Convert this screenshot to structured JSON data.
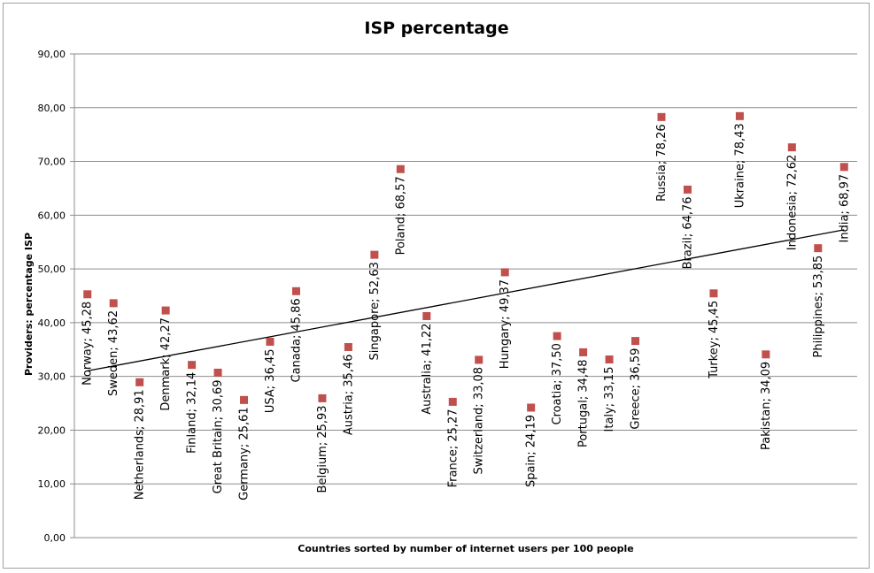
{
  "chart_data": {
    "type": "scatter",
    "title": "ISP percentage",
    "xlabel": "Countries sorted by number of internet users per 100 people",
    "ylabel": "Providers: percentage ISP",
    "ylim": [
      0,
      90
    ],
    "yticks": [
      "0,00",
      "10,00",
      "20,00",
      "30,00",
      "40,00",
      "50,00",
      "60,00",
      "70,00",
      "80,00",
      "90,00"
    ],
    "grid": "horizontal",
    "legend": "none",
    "marker_color": "#c0504d",
    "trendline": {
      "type": "linear",
      "color": "#000000"
    },
    "points": [
      {
        "label": "Norway; 45,28",
        "y": 45.28
      },
      {
        "label": "Sweden; 43,62",
        "y": 43.62
      },
      {
        "label": "Netherlands; 28,91",
        "y": 28.91
      },
      {
        "label": "Denmark; 42,27",
        "y": 42.27
      },
      {
        "label": "Finland; 32,14",
        "y": 32.14
      },
      {
        "label": "Great Britain; 30,69",
        "y": 30.69
      },
      {
        "label": "Germany; 25,61",
        "y": 25.61
      },
      {
        "label": "USA; 36,45",
        "y": 36.45
      },
      {
        "label": "Canada; 45,86",
        "y": 45.86
      },
      {
        "label": "Belgium; 25,93",
        "y": 25.93
      },
      {
        "label": "Austria; 35,46",
        "y": 35.46
      },
      {
        "label": "Singapore; 52,63",
        "y": 52.63
      },
      {
        "label": "Poland; 68,57",
        "y": 68.57
      },
      {
        "label": "Australia; 41,22",
        "y": 41.22
      },
      {
        "label": "France; 25,27",
        "y": 25.27
      },
      {
        "label": "Switzerland; 33,08",
        "y": 33.08
      },
      {
        "label": "Hungary; 49,37",
        "y": 49.37
      },
      {
        "label": "Spain; 24,19",
        "y": 24.19
      },
      {
        "label": "Croatia; 37,50",
        "y": 37.5
      },
      {
        "label": "Portugal; 34,48",
        "y": 34.48
      },
      {
        "label": "Italy; 33,15",
        "y": 33.15
      },
      {
        "label": "Greece; 36,59",
        "y": 36.59
      },
      {
        "label": "Russia; 78,26",
        "y": 78.26
      },
      {
        "label": "Brazil; 64,76",
        "y": 64.76
      },
      {
        "label": "Turkey; 45,45",
        "y": 45.45
      },
      {
        "label": "Ukraine; 78,43",
        "y": 78.43
      },
      {
        "label": "Pakistan; 34,09",
        "y": 34.09
      },
      {
        "label": "Indonesia; 72,62",
        "y": 72.62
      },
      {
        "label": "Philippines; 53,85",
        "y": 53.85
      },
      {
        "label": "India; 68,97",
        "y": 68.97
      }
    ]
  }
}
